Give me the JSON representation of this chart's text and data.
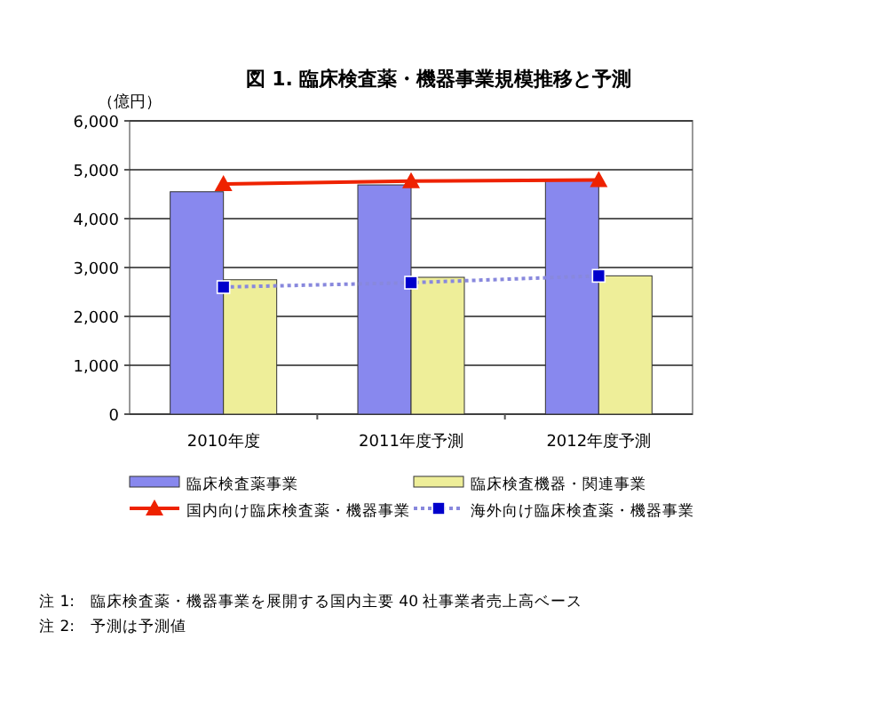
{
  "chart_data": {
    "type": "bar",
    "title": "図 1. 臨床検査薬・機器事業規模推移と予測",
    "ylabel": "（億円）",
    "categories": [
      "2010年度",
      "2011年度予測",
      "2012年度予測"
    ],
    "series": [
      {
        "name": "臨床検査薬事業",
        "color": "#8888ee",
        "values": [
          4550,
          4690,
          4800
        ]
      },
      {
        "name": "臨床検査機器・関連事業",
        "color": "#eeee99",
        "values": [
          2750,
          2800,
          2830
        ]
      },
      {
        "name": "国内向け臨床検査薬・機器事業",
        "type": "line",
        "color": "#ee2200",
        "marker": "triangle",
        "values": [
          4710,
          4770,
          4790
        ]
      },
      {
        "name": "海外向け臨床検査薬・機器事業",
        "type": "line",
        "color": "#8888dd",
        "marker": "square",
        "line_style": "dotted",
        "values": [
          2600,
          2690,
          2830
        ]
      }
    ],
    "ylim": [
      0,
      6000
    ],
    "yticks": [
      {
        "value": 0,
        "label": "0"
      },
      {
        "value": 1000,
        "label": "1,000"
      },
      {
        "value": 2000,
        "label": "2,000"
      },
      {
        "value": 3000,
        "label": "3,000"
      },
      {
        "value": 4000,
        "label": "4,000"
      },
      {
        "value": 5000,
        "label": "5,000"
      },
      {
        "value": 6000,
        "label": "6,000"
      }
    ],
    "grid": "y",
    "legend": "bottom",
    "annotations": [
      "注 1:　臨床検査薬・機器事業を展開する国内主要 40 社事業者売上高ベース",
      "注 2:　予測は予測値"
    ]
  }
}
